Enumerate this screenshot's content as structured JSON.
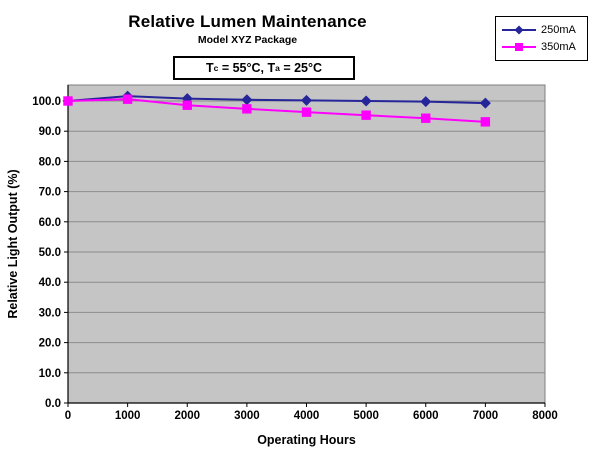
{
  "annotation": {
    "prefix": "T",
    "sub_c": "c",
    "middle": " = 55°C, T",
    "sub_a": "a",
    "suffix": " = 25°C"
  },
  "chart_data": {
    "type": "line",
    "title": "Relative Lumen Maintenance",
    "subtitle": "Model XYZ Package",
    "xlabel": "Operating Hours",
    "ylabel": "Relative Light Output (%)",
    "x": [
      0,
      1000,
      2000,
      3000,
      4000,
      5000,
      6000,
      7000
    ],
    "series": [
      {
        "name": "250mA",
        "color": "#26269A",
        "marker": "diamond",
        "values": [
          100.0,
          101.6,
          100.8,
          100.4,
          100.2,
          100.0,
          99.8,
          99.3
        ]
      },
      {
        "name": "350mA",
        "color": "#FF00FF",
        "marker": "square",
        "values": [
          100.0,
          100.6,
          98.6,
          97.4,
          96.3,
          95.3,
          94.3,
          93.1
        ]
      }
    ],
    "xlim": [
      0,
      8000
    ],
    "ylim": [
      0,
      100
    ],
    "x_tick_step": 1000,
    "y_tick_step": 10,
    "y_tick_decimals": 1,
    "grid": true,
    "legend_position": "top-right",
    "plot_bg": "#C5C5C5",
    "grid_color": "#8C8C8C",
    "axis_color": "#000000"
  }
}
